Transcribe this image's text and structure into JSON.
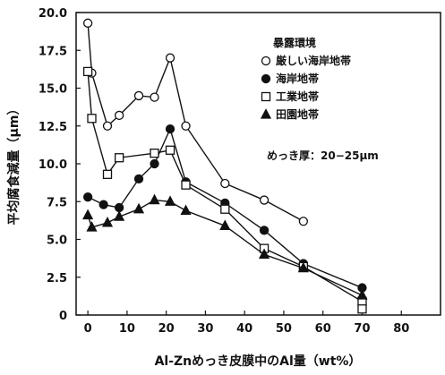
{
  "chart_data": {
    "type": "line",
    "xlabel": "Al-Znめっき皮膜中のAl量（wt%）",
    "ylabel": "平均腐食減量（μm）",
    "xlim": [
      -3,
      90
    ],
    "ylim": [
      0,
      20
    ],
    "x_ticks": [
      0,
      10,
      20,
      30,
      40,
      50,
      60,
      70,
      80
    ],
    "y_ticks": [
      "0",
      "2.5",
      "5.0",
      "7.5",
      "10.0",
      "12.5",
      "15.0",
      "17.5",
      "20.0"
    ],
    "legend_title": "暴露環境",
    "legend_position": "top-right",
    "annotation": "めっき厚：20−25μm",
    "grid": false,
    "series": [
      {
        "name": "厳しい海岸地帯",
        "marker": "open-circle",
        "x": [
          0,
          1,
          5,
          8,
          13,
          17,
          21,
          25,
          35,
          45,
          55
        ],
        "y": [
          19.3,
          16.0,
          12.5,
          13.2,
          14.5,
          14.4,
          17.0,
          12.5,
          8.7,
          7.6,
          6.2
        ]
      },
      {
        "name": "海岸地帯",
        "marker": "filled-circle",
        "x": [
          0,
          4,
          8,
          13,
          17,
          21,
          25,
          35,
          45,
          55,
          70
        ],
        "y": [
          7.8,
          7.3,
          7.1,
          9.0,
          10.0,
          12.3,
          8.8,
          7.4,
          5.6,
          3.4,
          1.8
        ]
      },
      {
        "name": "工業地帯",
        "marker": "open-square",
        "x": [
          0,
          1,
          5,
          8,
          17,
          21,
          25,
          35,
          45,
          55,
          70,
          70
        ],
        "y": [
          16.1,
          13.0,
          9.3,
          10.4,
          10.7,
          10.9,
          8.6,
          7.0,
          4.4,
          3.2,
          0.9,
          0.4
        ]
      },
      {
        "name": "田園地帯",
        "marker": "filled-triangle",
        "x": [
          0,
          1,
          5,
          8,
          13,
          17,
          21,
          25,
          35,
          45,
          55,
          70
        ],
        "y": [
          6.6,
          5.8,
          6.1,
          6.5,
          7.0,
          7.6,
          7.5,
          6.9,
          5.9,
          4.0,
          3.1,
          1.3
        ]
      }
    ]
  }
}
